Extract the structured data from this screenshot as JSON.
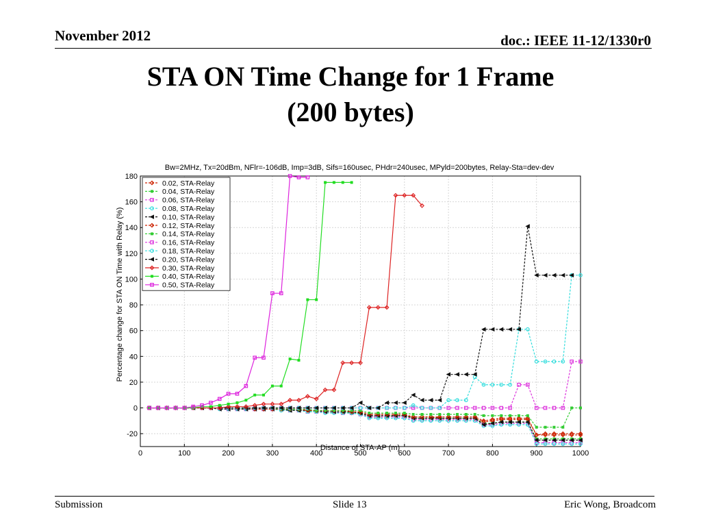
{
  "header": {
    "date": "November 2012",
    "doc": "doc.: IEEE 11-12/1330r0"
  },
  "slide": {
    "title_line1": "STA ON Time Change for 1 Frame",
    "title_line2": "(200 bytes)"
  },
  "footer": {
    "left": "Submission",
    "center": "Slide 13",
    "right": "Eric Wong, Broadcom"
  },
  "chart_data": {
    "type": "line",
    "title": "Bw=2MHz, Tx=20dBm, NFlr=-106dB, Imp=3dB, Sifs=160usec, PHdr=240usec, MPyld=200bytes, Relay-Sta=dev-dev",
    "xlabel": "Distance of STA-AP (m)",
    "ylabel": "Percentage change for STA ON Time with Relay (%)",
    "xlim": [
      0,
      1000
    ],
    "ylim": [
      -30,
      180
    ],
    "xticks": [
      0,
      100,
      200,
      300,
      400,
      500,
      600,
      700,
      800,
      900,
      1000
    ],
    "yticks": [
      -20,
      0,
      20,
      40,
      60,
      80,
      100,
      120,
      140,
      160,
      180
    ],
    "grid": true,
    "legend_position": "top-left",
    "series": [
      {
        "name": "0.02, STA-Relay",
        "color": "#cc2200",
        "marker": "diamond",
        "dashed": true,
        "x": [
          20,
          40,
          60,
          80,
          100,
          120,
          140,
          160,
          180,
          200,
          220,
          240,
          260,
          280,
          300,
          320,
          340,
          360,
          380,
          400,
          420,
          440,
          460,
          480,
          500,
          520,
          540,
          560,
          580,
          600,
          620,
          640,
          660,
          680,
          700,
          720,
          740,
          760,
          780,
          800,
          820,
          840,
          860,
          880,
          900,
          920,
          940,
          960,
          980,
          1000
        ],
        "y": [
          0,
          0,
          0,
          0,
          0,
          0,
          0,
          0,
          0,
          0,
          0,
          0,
          0,
          -1,
          -1,
          -1,
          -1,
          -1,
          -2,
          -2,
          -3,
          -3,
          -3,
          -4,
          -4,
          -6,
          -6,
          -6,
          -6,
          -6,
          -7,
          -7,
          -7,
          -8,
          -8,
          -8,
          -8,
          -8,
          -11,
          -10,
          -9,
          -9,
          -9,
          -9,
          -21,
          -20,
          -20,
          -20,
          -20,
          -20
        ]
      },
      {
        "name": "0.04, STA-Relay",
        "color": "#33cc33",
        "marker": "square",
        "dashed": true,
        "x": [
          20,
          40,
          60,
          80,
          100,
          120,
          140,
          160,
          180,
          200,
          220,
          240,
          260,
          280,
          300,
          320,
          340,
          360,
          380,
          400,
          420,
          440,
          460,
          480,
          500,
          520,
          540,
          560,
          580,
          600,
          620,
          640,
          660,
          680,
          700,
          720,
          740,
          760,
          780,
          800,
          820,
          840,
          860,
          880,
          900,
          920,
          940,
          960,
          980,
          1000
        ],
        "y": [
          0,
          0,
          0,
          0,
          0,
          0,
          0,
          0,
          0,
          0,
          0,
          -1,
          -1,
          -1,
          -1,
          -1,
          -1,
          -2,
          -2,
          -3,
          -3,
          -3,
          -3,
          -4,
          -4,
          -7,
          -7,
          -7,
          -6,
          -6,
          -8,
          -8,
          -8,
          -8,
          -8,
          -8,
          -8,
          -8,
          -12,
          -12,
          -11,
          -11,
          -11,
          -11,
          -24,
          -24,
          -24,
          -24,
          -24,
          -24
        ]
      },
      {
        "name": "0.06, STA-Relay",
        "color": "#dd33dd",
        "marker": "square-open",
        "dashed": true,
        "x": [
          20,
          40,
          60,
          80,
          100,
          120,
          140,
          160,
          180,
          200,
          220,
          240,
          260,
          280,
          300,
          320,
          340,
          360,
          380,
          400,
          420,
          440,
          460,
          480,
          500,
          520,
          540,
          560,
          580,
          600,
          620,
          640,
          660,
          680,
          700,
          720,
          740,
          760,
          780,
          800,
          820,
          840,
          860,
          880,
          900,
          920,
          940,
          960,
          980,
          1000
        ],
        "y": [
          0,
          0,
          0,
          0,
          0,
          0,
          0,
          0,
          0,
          -1,
          -1,
          -1,
          -1,
          -1,
          -1,
          -1,
          -2,
          -2,
          -3,
          -3,
          -3,
          -3,
          -4,
          -4,
          -5,
          -7,
          -7,
          -7,
          -7,
          -7,
          -9,
          -9,
          -9,
          -9,
          -9,
          -9,
          -9,
          -9,
          -13,
          -13,
          -12,
          -12,
          -12,
          -12,
          -27,
          -27,
          -27,
          -27,
          -27,
          -27
        ]
      },
      {
        "name": "0.08, STA-Relay",
        "color": "#33dddd",
        "marker": "circle-open",
        "dashed": true,
        "x": [
          20,
          40,
          60,
          80,
          100,
          120,
          140,
          160,
          180,
          200,
          220,
          240,
          260,
          280,
          300,
          320,
          340,
          360,
          380,
          400,
          420,
          440,
          460,
          480,
          500,
          520,
          540,
          560,
          580,
          600,
          620,
          640,
          660,
          680,
          700,
          720,
          740,
          760,
          780,
          800,
          820,
          840,
          860,
          880,
          900,
          920,
          940,
          960,
          980,
          1000
        ],
        "y": [
          0,
          0,
          0,
          0,
          0,
          0,
          0,
          0,
          -1,
          -1,
          -1,
          -1,
          -1,
          -1,
          -1,
          -2,
          -2,
          -2,
          -3,
          -3,
          -4,
          -4,
          -4,
          -4,
          -5,
          -8,
          -8,
          -8,
          -8,
          -8,
          -10,
          -10,
          -10,
          -10,
          -10,
          -10,
          -10,
          -10,
          -14,
          -14,
          -13,
          -13,
          -13,
          -13,
          -28,
          -28,
          -28,
          -28,
          -28,
          -28
        ]
      },
      {
        "name": "0.10, STA-Relay",
        "color": "#111111",
        "marker": "triangle-left",
        "dashed": true,
        "x": [
          20,
          40,
          60,
          80,
          100,
          120,
          140,
          160,
          180,
          200,
          220,
          240,
          260,
          280,
          300,
          320,
          340,
          360,
          380,
          400,
          420,
          440,
          460,
          480,
          500,
          520,
          540,
          560,
          580,
          600,
          620,
          640,
          660,
          680,
          700,
          720,
          740,
          760,
          780,
          800,
          820,
          840,
          860,
          880,
          900,
          920,
          940,
          960,
          980,
          1000
        ],
        "y": [
          0,
          0,
          0,
          0,
          0,
          0,
          0,
          0,
          -1,
          -1,
          -1,
          -1,
          -1,
          -1,
          -1,
          -1,
          -2,
          -2,
          -2,
          -2,
          -3,
          -3,
          -3,
          -3,
          -4,
          -6,
          -6,
          -6,
          -6,
          -6,
          -8,
          -8,
          -8,
          -8,
          -8,
          -8,
          -8,
          -8,
          -13,
          -12,
          -11,
          -11,
          -11,
          -11,
          -25,
          -25,
          -25,
          -25,
          -25,
          -25
        ]
      },
      {
        "name": "0.12, STA-Relay",
        "color": "#cc2200",
        "marker": "diamond",
        "dashed": true,
        "x": [
          20,
          40,
          60,
          80,
          100,
          120,
          140,
          160,
          180,
          200,
          220,
          240,
          260,
          280,
          300,
          320,
          340,
          360,
          380,
          400,
          420,
          440,
          460,
          480,
          500,
          520,
          540,
          560,
          580,
          600,
          620,
          640,
          660,
          680,
          700,
          720,
          740,
          760,
          780,
          800,
          820,
          840,
          860,
          880,
          900,
          920,
          940,
          960,
          980,
          1000
        ],
        "y": [
          0,
          0,
          0,
          0,
          0,
          0,
          0,
          0,
          0,
          0,
          0,
          0,
          -1,
          -1,
          -1,
          -1,
          -1,
          -1,
          -2,
          -2,
          -2,
          -2,
          -2,
          -3,
          -3,
          -5,
          -5,
          -5,
          -5,
          -5,
          -7,
          -7,
          -7,
          -7,
          -7,
          -7,
          -7,
          -7,
          -10,
          -9,
          -8,
          -8,
          -8,
          -8,
          -21,
          -21,
          -21,
          -21,
          -21,
          -21
        ]
      },
      {
        "name": "0.14, STA-Relay",
        "color": "#33cc33",
        "marker": "square",
        "dashed": true,
        "x": [
          20,
          40,
          60,
          80,
          100,
          120,
          140,
          160,
          180,
          200,
          220,
          240,
          260,
          280,
          300,
          320,
          340,
          360,
          380,
          400,
          420,
          440,
          460,
          480,
          500,
          520,
          540,
          560,
          580,
          600,
          620,
          640,
          660,
          680,
          700,
          720,
          740,
          760,
          780,
          800,
          820,
          840,
          860,
          880,
          900,
          920,
          940,
          960,
          980,
          1000
        ],
        "y": [
          0,
          0,
          0,
          0,
          0,
          0,
          0,
          0,
          0,
          0,
          0,
          0,
          0,
          0,
          0,
          -1,
          -1,
          -1,
          -1,
          -2,
          -2,
          -2,
          -2,
          -2,
          -2,
          -4,
          -4,
          -4,
          -4,
          -4,
          -5,
          -5,
          -5,
          -5,
          -5,
          -5,
          -5,
          -5,
          -6,
          -6,
          -6,
          -6,
          -6,
          -6,
          -15,
          -15,
          -15,
          -15,
          0,
          0
        ]
      },
      {
        "name": "0.16, STA-Relay",
        "color": "#dd33dd",
        "marker": "square-open",
        "dashed": true,
        "x": [
          20,
          40,
          60,
          80,
          100,
          120,
          140,
          160,
          180,
          200,
          220,
          240,
          260,
          280,
          300,
          320,
          340,
          360,
          380,
          400,
          420,
          440,
          460,
          480,
          500,
          520,
          540,
          560,
          580,
          600,
          620,
          640,
          660,
          680,
          700,
          720,
          740,
          760,
          780,
          800,
          820,
          840,
          860,
          880,
          900,
          920,
          940,
          960,
          980,
          1000
        ],
        "y": [
          0,
          0,
          0,
          0,
          0,
          0,
          0,
          0,
          0,
          0,
          0,
          0,
          0,
          0,
          0,
          0,
          0,
          0,
          0,
          0,
          0,
          0,
          0,
          0,
          0,
          0,
          0,
          0,
          0,
          0,
          0,
          0,
          0,
          0,
          0,
          0,
          0,
          0,
          0,
          0,
          0,
          0,
          18,
          18,
          0,
          0,
          0,
          0,
          36,
          36
        ]
      },
      {
        "name": "0.18, STA-Relay",
        "color": "#33dddd",
        "marker": "circle-open",
        "dashed": true,
        "x": [
          20,
          40,
          60,
          80,
          100,
          120,
          140,
          160,
          180,
          200,
          220,
          240,
          260,
          280,
          300,
          320,
          340,
          360,
          380,
          400,
          420,
          440,
          460,
          480,
          500,
          520,
          540,
          560,
          580,
          600,
          620,
          640,
          660,
          680,
          700,
          720,
          740,
          760,
          780,
          800,
          820,
          840,
          860,
          880,
          900,
          920,
          940,
          960,
          980,
          1000
        ],
        "y": [
          0,
          0,
          0,
          0,
          0,
          0,
          0,
          0,
          0,
          0,
          0,
          0,
          0,
          0,
          0,
          0,
          0,
          0,
          0,
          0,
          0,
          0,
          0,
          0,
          0,
          0,
          0,
          0,
          0,
          0,
          2,
          0,
          0,
          0,
          6,
          6,
          6,
          24,
          18,
          18,
          18,
          18,
          61,
          61,
          36,
          36,
          36,
          36,
          103,
          103
        ]
      },
      {
        "name": "0.20, STA-Relay",
        "color": "#111111",
        "marker": "triangle-left",
        "dashed": true,
        "x": [
          20,
          40,
          60,
          80,
          100,
          120,
          140,
          160,
          180,
          200,
          220,
          240,
          260,
          280,
          300,
          320,
          340,
          360,
          380,
          400,
          420,
          440,
          460,
          480,
          500,
          520,
          540,
          560,
          580,
          600,
          620,
          640,
          660,
          680,
          700,
          720,
          740,
          760,
          780,
          800,
          820,
          840,
          860,
          880,
          900,
          920,
          940,
          960,
          980
        ],
        "y": [
          0,
          0,
          0,
          0,
          0,
          0,
          0,
          0,
          0,
          0,
          0,
          0,
          0,
          0,
          0,
          0,
          0,
          0,
          0,
          0,
          0,
          0,
          0,
          0,
          4,
          0,
          0,
          4,
          4,
          4,
          10,
          6,
          6,
          6,
          26,
          26,
          26,
          26,
          61,
          61,
          61,
          61,
          61,
          141,
          103,
          103,
          103,
          103,
          103
        ]
      },
      {
        "name": "0.30, STA-Relay",
        "color": "#dd2222",
        "marker": "diamond",
        "dashed": false,
        "x": [
          20,
          40,
          60,
          80,
          100,
          120,
          140,
          160,
          180,
          200,
          220,
          240,
          260,
          280,
          300,
          320,
          340,
          360,
          380,
          400,
          420,
          440,
          460,
          480,
          500,
          520,
          540,
          560,
          580,
          600,
          620,
          640
        ],
        "y": [
          0,
          0,
          0,
          0,
          0,
          0,
          0,
          0,
          0,
          1,
          1,
          1,
          2,
          3,
          3,
          3,
          6,
          6,
          9,
          7,
          14,
          14,
          35,
          35,
          35,
          78,
          78,
          78,
          165,
          165,
          165,
          157
        ]
      },
      {
        "name": "0.40, STA-Relay",
        "color": "#22dd22",
        "marker": "square",
        "dashed": false,
        "x": [
          20,
          40,
          60,
          80,
          100,
          120,
          140,
          160,
          180,
          200,
          220,
          240,
          260,
          280,
          300,
          320,
          340,
          360,
          380,
          400,
          420,
          440,
          460,
          480
        ],
        "y": [
          0,
          0,
          0,
          0,
          0,
          0,
          1,
          1,
          2,
          3,
          4,
          6,
          10,
          10,
          17,
          17,
          38,
          37,
          84,
          84,
          175,
          175,
          175,
          175
        ]
      },
      {
        "name": "0.50, STA-Relay",
        "color": "#dd22dd",
        "marker": "square-open",
        "dashed": false,
        "x": [
          20,
          40,
          60,
          80,
          100,
          120,
          140,
          160,
          180,
          200,
          220,
          240,
          260,
          280,
          300,
          320,
          340,
          360,
          380
        ],
        "y": [
          0,
          0,
          0,
          0,
          0,
          1,
          2,
          4,
          7,
          11,
          11,
          17,
          39,
          39,
          89,
          89,
          180,
          179,
          179
        ]
      }
    ]
  }
}
